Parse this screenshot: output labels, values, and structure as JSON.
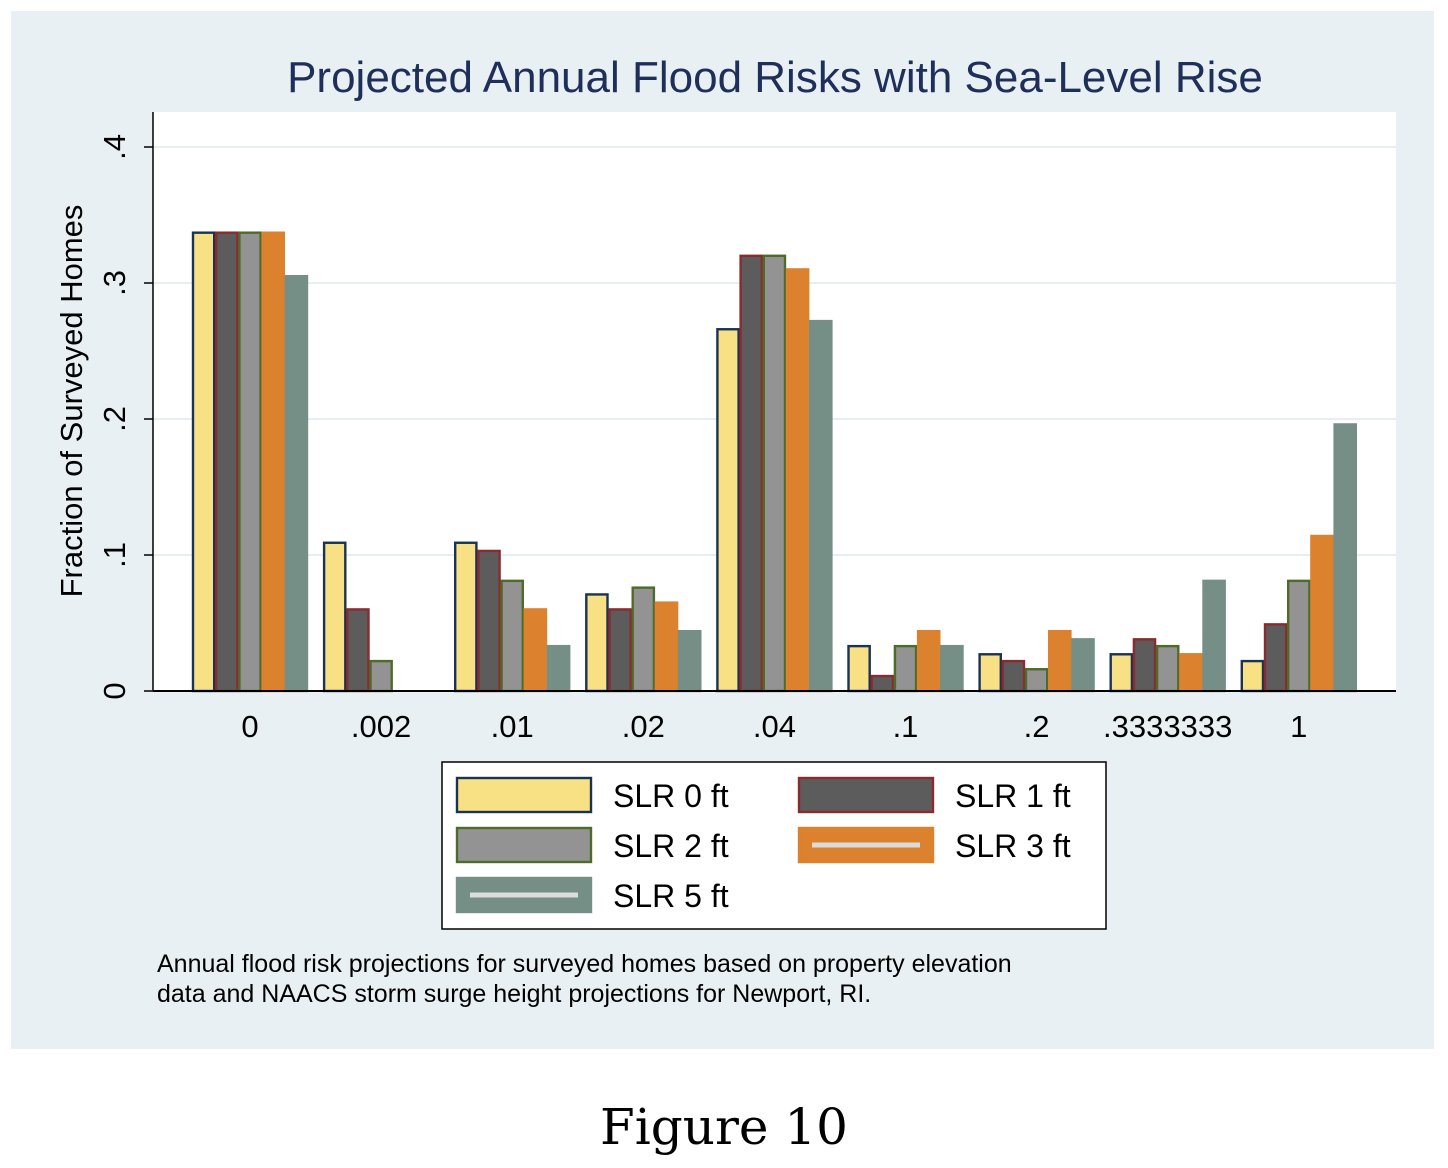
{
  "chart_data": {
    "type": "bar",
    "title": "Projected Annual Flood Risks with Sea-Level Rise",
    "xlabel": "",
    "ylabel": "Fraction of Surveyed Homes",
    "ylim": [
      0,
      0.42
    ],
    "yticks": [
      {
        "value": 0,
        "label": "0"
      },
      {
        "value": 0.1,
        "label": ".1"
      },
      {
        "value": 0.2,
        "label": ".2"
      },
      {
        "value": 0.3,
        "label": ".3"
      },
      {
        "value": 0.4,
        "label": ".4"
      }
    ],
    "grid": true,
    "legend_position": "bottom",
    "categories": [
      "0",
      ".002",
      ".01",
      ".02",
      ".04",
      ".1",
      ".2",
      ".3333333",
      "1"
    ],
    "series": [
      {
        "name": "SLR 0 ft",
        "fill": "#f8e085",
        "stroke": "#1a3355",
        "values": [
          0.337,
          0.109,
          0.109,
          0.071,
          0.266,
          0.033,
          0.027,
          0.027,
          0.022
        ]
      },
      {
        "name": "SLR 1 ft",
        "fill": "#5c5c5c",
        "stroke": "#8b2a2f",
        "values": [
          0.337,
          0.06,
          0.103,
          0.06,
          0.32,
          0.011,
          0.022,
          0.038,
          0.049
        ]
      },
      {
        "name": "SLR 2 ft",
        "fill": "#939393",
        "stroke": "#4e6b29",
        "values": [
          0.337,
          0.022,
          0.081,
          0.076,
          0.32,
          0.033,
          0.016,
          0.033,
          0.081
        ]
      },
      {
        "name": "SLR 3 ft",
        "fill": "#dc812e",
        "stroke": "#dc812e",
        "values": [
          0.337,
          0,
          0.06,
          0.065,
          0.31,
          0.044,
          0.044,
          0.027,
          0.114
        ]
      },
      {
        "name": "SLR 5 ft",
        "fill": "#758e86",
        "stroke": "#758e86",
        "values": [
          0.305,
          0,
          0.033,
          0.044,
          0.272,
          0.033,
          0.038,
          0.081,
          0.196
        ]
      }
    ]
  },
  "note": {
    "line1": "Annual flood risk projections for surveyed homes based on property elevation",
    "line2": "data and NAACS storm surge height projections for Newport, RI."
  },
  "figure_caption": "Figure 10",
  "colors": {
    "outer_background": "#e9f0f3",
    "plot_background": "#ffffff",
    "title": "#1e2f5a",
    "grid": "#e6eef2"
  }
}
